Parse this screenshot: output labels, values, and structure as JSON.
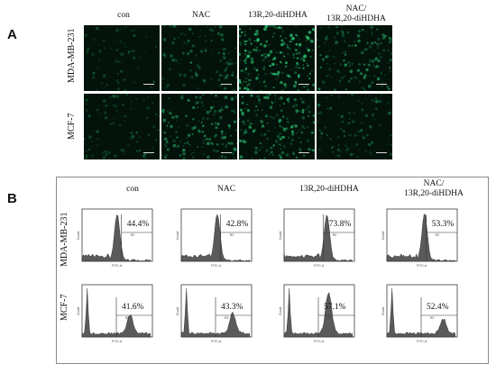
{
  "panel_a": {
    "letter": "A",
    "columns": [
      "con",
      "NAC",
      "13R,20-diHDHA",
      "NAC/\n13R,20-diHDHA"
    ],
    "rows": [
      "MDA-MB-231",
      "MCF-7"
    ],
    "image_brightness": [
      [
        0.15,
        0.35,
        0.95,
        0.55
      ],
      [
        0.25,
        0.6,
        0.75,
        0.3
      ]
    ]
  },
  "panel_b": {
    "letter": "B",
    "columns": [
      "con",
      "NAC",
      "13R,20-diHDHA",
      "NAC/\n13R,20-diHDHA"
    ],
    "rows": [
      "MDA-MB-231",
      "MCF-7"
    ],
    "percentages": [
      [
        "44.4%",
        "42.8%",
        "73.8%",
        "53.3%"
      ],
      [
        "41.6%",
        "43.3%",
        "57.1%",
        "52.4%"
      ]
    ],
    "x_axis_label": "FITC-A",
    "y_axis_label": "Count",
    "gate_label": "R2"
  },
  "colors": {
    "fluorescence": "#2fd17a",
    "histogram_fill": "#5a5a5a",
    "frame": "#8a8a8a"
  }
}
